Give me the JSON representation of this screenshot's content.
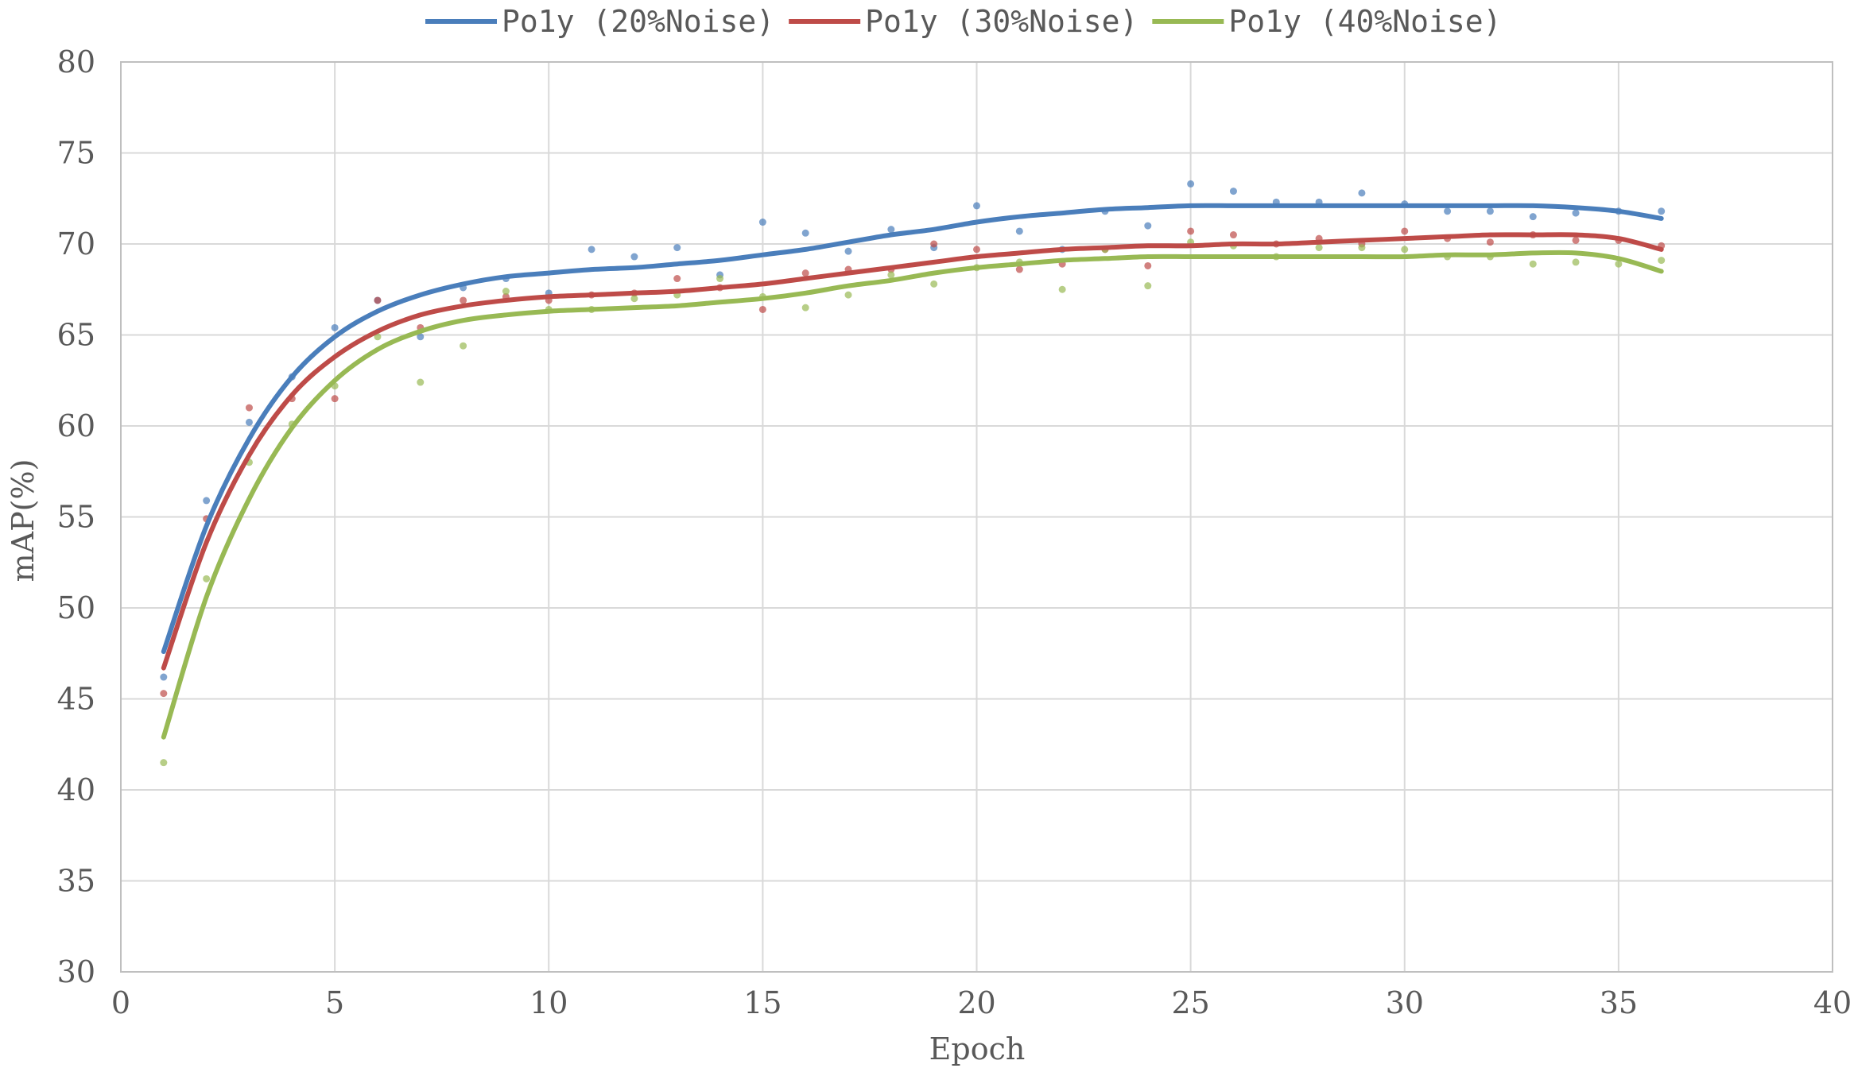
{
  "chart_data": {
    "type": "scatter",
    "title": "",
    "xlabel": "Epoch",
    "ylabel": "mAP(%)",
    "xlim": [
      0,
      40
    ],
    "ylim": [
      30,
      80
    ],
    "x_ticks": [
      0,
      5,
      10,
      15,
      20,
      25,
      30,
      35,
      40
    ],
    "y_ticks": [
      30,
      35,
      40,
      45,
      50,
      55,
      60,
      65,
      70,
      75,
      80
    ],
    "grid": true,
    "legend_position": "top",
    "series": [
      {
        "name": "Po1y (20%Noise)",
        "color": "#4a7ebb",
        "points": [
          [
            1,
            46.2
          ],
          [
            2,
            55.9
          ],
          [
            3,
            60.2
          ],
          [
            4,
            62.7
          ],
          [
            5,
            65.4
          ],
          [
            6,
            66.9
          ],
          [
            7,
            64.9
          ],
          [
            8,
            67.6
          ],
          [
            9,
            68.1
          ],
          [
            10,
            67.3
          ],
          [
            11,
            69.7
          ],
          [
            12,
            69.3
          ],
          [
            13,
            69.8
          ],
          [
            14,
            68.3
          ],
          [
            15,
            71.2
          ],
          [
            16,
            70.6
          ],
          [
            17,
            69.6
          ],
          [
            18,
            70.8
          ],
          [
            19,
            69.8
          ],
          [
            20,
            72.1
          ],
          [
            21,
            70.7
          ],
          [
            22,
            69.7
          ],
          [
            23,
            71.8
          ],
          [
            24,
            71.0
          ],
          [
            25,
            73.3
          ],
          [
            26,
            72.9
          ],
          [
            27,
            72.3
          ],
          [
            28,
            72.3
          ],
          [
            29,
            72.8
          ],
          [
            30,
            72.2
          ],
          [
            31,
            71.8
          ],
          [
            32,
            71.8
          ],
          [
            33,
            71.5
          ],
          [
            34,
            71.7
          ],
          [
            35,
            71.8
          ],
          [
            36,
            71.8
          ]
        ],
        "trend": [
          [
            1,
            47.6
          ],
          [
            2,
            54.5
          ],
          [
            3,
            59.3
          ],
          [
            4,
            62.7
          ],
          [
            5,
            64.9
          ],
          [
            6,
            66.3
          ],
          [
            7,
            67.2
          ],
          [
            8,
            67.8
          ],
          [
            9,
            68.2
          ],
          [
            10,
            68.4
          ],
          [
            11,
            68.6
          ],
          [
            12,
            68.7
          ],
          [
            13,
            68.9
          ],
          [
            14,
            69.1
          ],
          [
            15,
            69.4
          ],
          [
            16,
            69.7
          ],
          [
            17,
            70.1
          ],
          [
            18,
            70.5
          ],
          [
            19,
            70.8
          ],
          [
            20,
            71.2
          ],
          [
            21,
            71.5
          ],
          [
            22,
            71.7
          ],
          [
            23,
            71.9
          ],
          [
            24,
            72.0
          ],
          [
            25,
            72.1
          ],
          [
            26,
            72.1
          ],
          [
            27,
            72.1
          ],
          [
            28,
            72.1
          ],
          [
            29,
            72.1
          ],
          [
            30,
            72.1
          ],
          [
            31,
            72.1
          ],
          [
            32,
            72.1
          ],
          [
            33,
            72.1
          ],
          [
            34,
            72.0
          ],
          [
            35,
            71.8
          ],
          [
            36,
            71.4
          ]
        ]
      },
      {
        "name": "Po1y (30%Noise)",
        "color": "#be4b48",
        "points": [
          [
            1,
            45.3
          ],
          [
            2,
            54.9
          ],
          [
            3,
            61.0
          ],
          [
            4,
            61.5
          ],
          [
            5,
            61.5
          ],
          [
            6,
            66.9
          ],
          [
            7,
            65.4
          ],
          [
            8,
            66.9
          ],
          [
            9,
            67.1
          ],
          [
            10,
            66.9
          ],
          [
            11,
            67.2
          ],
          [
            12,
            67.3
          ],
          [
            13,
            68.1
          ],
          [
            14,
            67.6
          ],
          [
            15,
            66.4
          ],
          [
            16,
            68.4
          ],
          [
            17,
            68.6
          ],
          [
            18,
            68.6
          ],
          [
            19,
            70.0
          ],
          [
            20,
            69.7
          ],
          [
            21,
            68.6
          ],
          [
            22,
            68.9
          ],
          [
            23,
            69.7
          ],
          [
            24,
            68.8
          ],
          [
            25,
            70.7
          ],
          [
            26,
            70.5
          ],
          [
            27,
            70.0
          ],
          [
            28,
            70.3
          ],
          [
            29,
            70.0
          ],
          [
            30,
            70.7
          ],
          [
            31,
            70.3
          ],
          [
            32,
            70.1
          ],
          [
            33,
            70.5
          ],
          [
            34,
            70.2
          ],
          [
            35,
            70.2
          ],
          [
            36,
            69.9
          ]
        ],
        "trend": [
          [
            1,
            46.7
          ],
          [
            2,
            53.6
          ],
          [
            3,
            58.4
          ],
          [
            4,
            61.7
          ],
          [
            5,
            63.8
          ],
          [
            6,
            65.2
          ],
          [
            7,
            66.1
          ],
          [
            8,
            66.6
          ],
          [
            9,
            66.9
          ],
          [
            10,
            67.1
          ],
          [
            11,
            67.2
          ],
          [
            12,
            67.3
          ],
          [
            13,
            67.4
          ],
          [
            14,
            67.6
          ],
          [
            15,
            67.8
          ],
          [
            16,
            68.1
          ],
          [
            17,
            68.4
          ],
          [
            18,
            68.7
          ],
          [
            19,
            69.0
          ],
          [
            20,
            69.3
          ],
          [
            21,
            69.5
          ],
          [
            22,
            69.7
          ],
          [
            23,
            69.8
          ],
          [
            24,
            69.9
          ],
          [
            25,
            69.9
          ],
          [
            26,
            70.0
          ],
          [
            27,
            70.0
          ],
          [
            28,
            70.1
          ],
          [
            29,
            70.2
          ],
          [
            30,
            70.3
          ],
          [
            31,
            70.4
          ],
          [
            32,
            70.5
          ],
          [
            33,
            70.5
          ],
          [
            34,
            70.5
          ],
          [
            35,
            70.3
          ],
          [
            36,
            69.7
          ]
        ]
      },
      {
        "name": "Po1y (40%Noise)",
        "color": "#98b954",
        "points": [
          [
            1,
            41.5
          ],
          [
            2,
            51.6
          ],
          [
            3,
            58.0
          ],
          [
            4,
            60.1
          ],
          [
            5,
            62.2
          ],
          [
            6,
            64.9
          ],
          [
            7,
            62.4
          ],
          [
            8,
            64.4
          ],
          [
            9,
            67.4
          ],
          [
            10,
            66.4
          ],
          [
            11,
            66.4
          ],
          [
            12,
            67.0
          ],
          [
            13,
            67.2
          ],
          [
            14,
            68.1
          ],
          [
            15,
            67.1
          ],
          [
            16,
            66.5
          ],
          [
            17,
            67.2
          ],
          [
            18,
            68.3
          ],
          [
            19,
            67.8
          ],
          [
            20,
            68.7
          ],
          [
            21,
            69.0
          ],
          [
            22,
            67.5
          ],
          [
            23,
            69.7
          ],
          [
            24,
            67.7
          ],
          [
            25,
            70.1
          ],
          [
            26,
            69.9
          ],
          [
            27,
            69.3
          ],
          [
            28,
            69.8
          ],
          [
            29,
            69.8
          ],
          [
            30,
            69.7
          ],
          [
            31,
            69.3
          ],
          [
            32,
            69.3
          ],
          [
            33,
            68.9
          ],
          [
            34,
            69.0
          ],
          [
            35,
            68.9
          ],
          [
            36,
            69.1
          ]
        ],
        "trend": [
          [
            1,
            42.9
          ],
          [
            2,
            50.6
          ],
          [
            3,
            56.0
          ],
          [
            4,
            59.9
          ],
          [
            5,
            62.5
          ],
          [
            6,
            64.2
          ],
          [
            7,
            65.2
          ],
          [
            8,
            65.8
          ],
          [
            9,
            66.1
          ],
          [
            10,
            66.3
          ],
          [
            11,
            66.4
          ],
          [
            12,
            66.5
          ],
          [
            13,
            66.6
          ],
          [
            14,
            66.8
          ],
          [
            15,
            67.0
          ],
          [
            16,
            67.3
          ],
          [
            17,
            67.7
          ],
          [
            18,
            68.0
          ],
          [
            19,
            68.4
          ],
          [
            20,
            68.7
          ],
          [
            21,
            68.9
          ],
          [
            22,
            69.1
          ],
          [
            23,
            69.2
          ],
          [
            24,
            69.3
          ],
          [
            25,
            69.3
          ],
          [
            26,
            69.3
          ],
          [
            27,
            69.3
          ],
          [
            28,
            69.3
          ],
          [
            29,
            69.3
          ],
          [
            30,
            69.3
          ],
          [
            31,
            69.4
          ],
          [
            32,
            69.4
          ],
          [
            33,
            69.5
          ],
          [
            34,
            69.5
          ],
          [
            35,
            69.2
          ],
          [
            36,
            68.5
          ]
        ]
      }
    ]
  }
}
